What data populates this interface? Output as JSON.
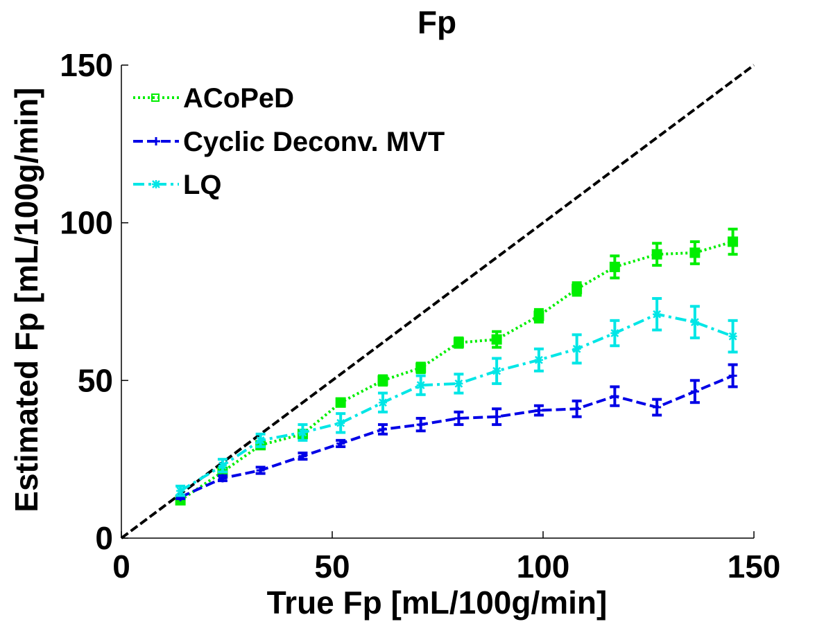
{
  "chart_data": {
    "type": "line",
    "title": "Fp",
    "xlabel": "True Fp [mL/100g/min]",
    "ylabel": "Estimated Fp [mL/100g/min]",
    "xlim": [
      0,
      150
    ],
    "ylim": [
      0,
      150
    ],
    "xticks": [
      "0",
      "50",
      "100",
      "150"
    ],
    "yticks": [
      "0",
      "50",
      "100",
      "150"
    ],
    "grid": false,
    "legend_position": "top-left",
    "x": [
      14,
      24,
      33,
      43,
      52,
      62,
      71,
      80,
      89,
      99,
      108,
      117,
      127,
      136,
      145
    ],
    "identity_line": {
      "from": [
        0,
        0
      ],
      "to": [
        150,
        150
      ],
      "color": "#000000"
    },
    "series": [
      {
        "name": "ACoPeD",
        "color": "#00ee00",
        "style": "dotted",
        "marker": "square",
        "values": [
          12,
          21,
          29.5,
          33,
          43,
          50,
          54,
          62,
          63,
          70.5,
          79,
          86,
          90,
          90.5,
          94
        ],
        "errors": [
          0.5,
          0.8,
          1.2,
          1.2,
          1.2,
          1.5,
          1.5,
          1.5,
          2.5,
          2,
          2,
          3.5,
          3.5,
          3.5,
          4
        ]
      },
      {
        "name": "Cyclic Deconv. MVT",
        "color": "#0000e6",
        "style": "dashed",
        "marker": "plus",
        "values": [
          13,
          19,
          21.5,
          26,
          30,
          34.5,
          36,
          38,
          38.5,
          40.5,
          41,
          45,
          41.5,
          46.5,
          51.5
        ],
        "errors": [
          0.5,
          0.8,
          1,
          1,
          1,
          1.5,
          2,
          2,
          2.5,
          1.5,
          2.5,
          3,
          2.5,
          3.5,
          3.5
        ]
      },
      {
        "name": "LQ",
        "color": "#00e6e6",
        "style": "dashdot",
        "marker": "star",
        "values": [
          15,
          23,
          31,
          33.5,
          36.5,
          43,
          48.5,
          49,
          53,
          56.5,
          60,
          65,
          71,
          68.5,
          64
        ],
        "errors": [
          1.5,
          2,
          2,
          2.5,
          3,
          3,
          3,
          3,
          4,
          3.5,
          4.5,
          4,
          5,
          5,
          5
        ]
      }
    ]
  }
}
